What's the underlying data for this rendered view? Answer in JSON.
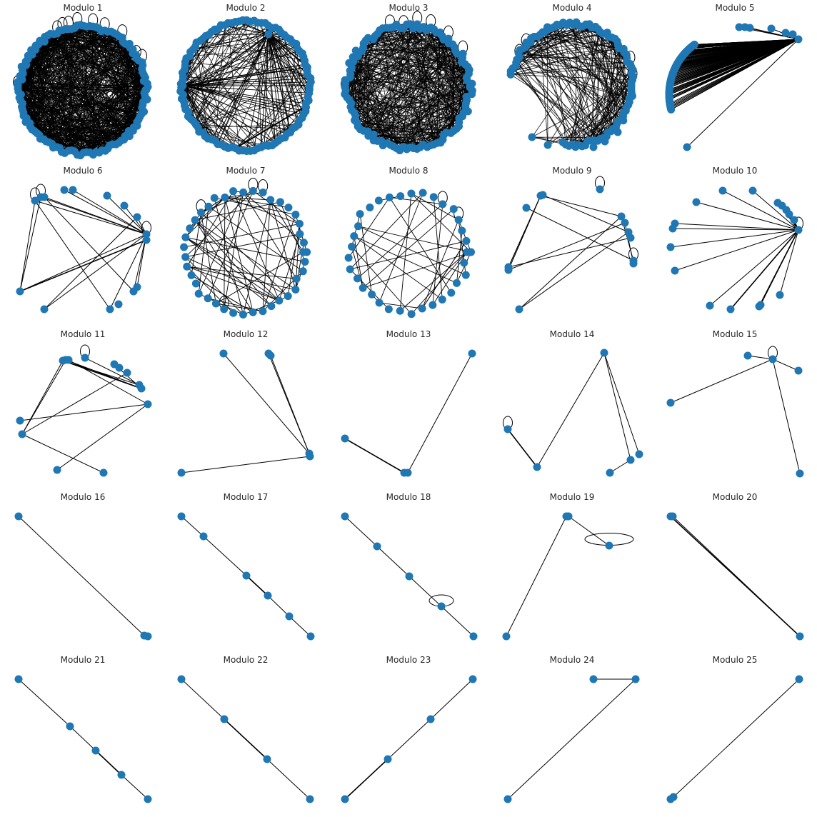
{
  "figure": {
    "node_color": "#1f77b4",
    "edge_color": "#000000",
    "background": "#ffffff"
  },
  "panels": [
    {
      "title": "Modulo 1"
    },
    {
      "title": "Modulo 2"
    },
    {
      "title": "Modulo 3"
    },
    {
      "title": "Modulo 4"
    },
    {
      "title": "Modulo 5"
    },
    {
      "title": "Modulo 6"
    },
    {
      "title": "Modulo 7"
    },
    {
      "title": "Modulo 8"
    },
    {
      "title": "Modulo 9"
    },
    {
      "title": "Modulo 10"
    },
    {
      "title": "Modulo 11"
    },
    {
      "title": "Modulo 12"
    },
    {
      "title": "Modulo 13"
    },
    {
      "title": "Modulo 14"
    },
    {
      "title": "Modulo 15"
    },
    {
      "title": "Modulo 16"
    },
    {
      "title": "Modulo 17"
    },
    {
      "title": "Modulo 18"
    },
    {
      "title": "Modulo 19"
    },
    {
      "title": "Modulo 20"
    },
    {
      "title": "Modulo 21"
    },
    {
      "title": "Modulo 22"
    },
    {
      "title": "Modulo 23"
    },
    {
      "title": "Modulo 24"
    },
    {
      "title": "Modulo 25"
    }
  ]
}
